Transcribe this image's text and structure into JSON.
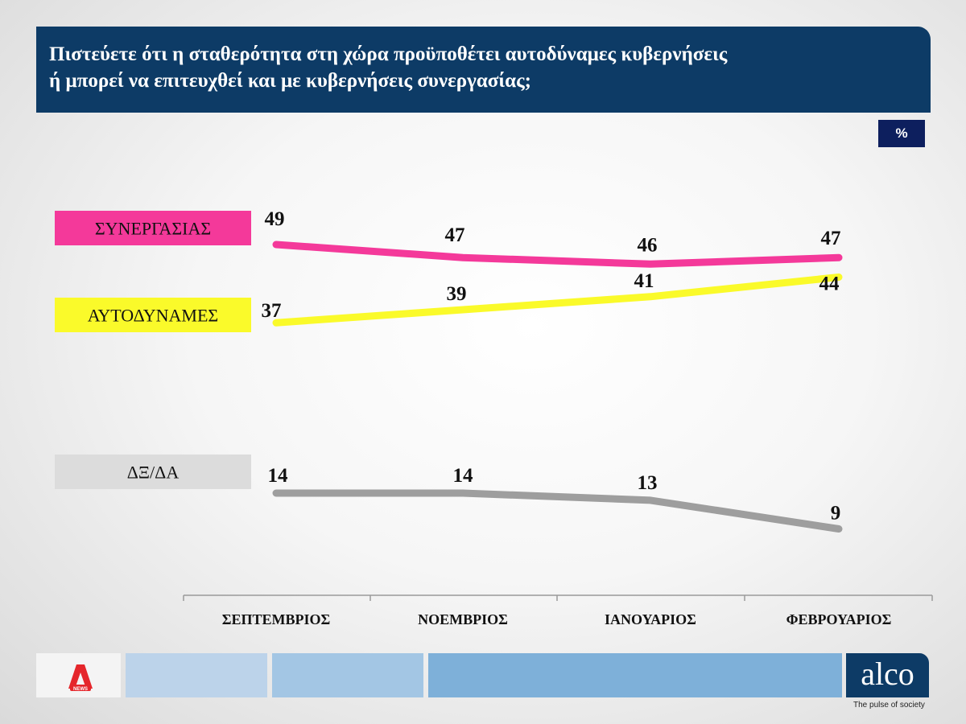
{
  "header": {
    "title_line1": "Πιστεύετε ότι η σταθερότητα στη χώρα προϋποθέτει αυτοδύναμες κυβερνήσεις",
    "title_line2": "ή μπορεί να επιτευχθεί και με κυβερνήσεις συνεργασίας;",
    "unit": "%"
  },
  "chart_data": {
    "type": "line",
    "categories": [
      "ΣΕΠΤΕΜΒΡΙΟΣ",
      "ΝΟΕΜΒΡΙΟΣ",
      "ΙΑΝΟΥΑΡΙΟΣ",
      "ΦΕΒΡΟΥΑΡΙΟΣ"
    ],
    "series": [
      {
        "name": "ΣΥΝΕΡΓΑΣΙΑΣ",
        "values": [
          49,
          47,
          46,
          47
        ],
        "color": "#f4399a",
        "label_bg": "#f4399a"
      },
      {
        "name": "ΑΥΤΟΔΥΝΑΜΕΣ",
        "values": [
          37,
          39,
          41,
          44
        ],
        "color": "#fafa2a",
        "label_bg": "#fafa2a"
      },
      {
        "name": "ΔΞ/ΔΑ",
        "values": [
          14,
          14,
          13,
          9
        ],
        "color": "#9e9e9e",
        "label_bg": "#dcdcdc"
      }
    ],
    "legend_position": "left",
    "grid": false
  },
  "footer": {
    "news_logo_text": "NEWS",
    "brand": "alco",
    "tagline": "The pulse of society",
    "strip_colors": [
      "#bcd3ea",
      "#a3c6e4",
      "#7eb0d9"
    ]
  }
}
